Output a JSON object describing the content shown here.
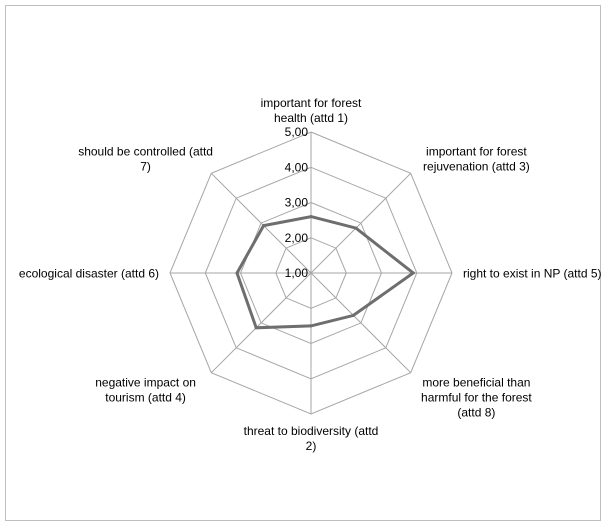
{
  "chart_data": {
    "type": "radar",
    "title": "",
    "scale": {
      "min": 1,
      "max": 5,
      "step": 1
    },
    "tick_labels": [
      "1,00",
      "2,00",
      "3,00",
      "4,00",
      "5,00"
    ],
    "categories": [
      {
        "label_lines": [
          "important for forest",
          "health (attd 1)"
        ]
      },
      {
        "label_lines": [
          "important for forest",
          "rejuvenation (attd 3)"
        ]
      },
      {
        "label_lines": [
          "right to exist in NP (attd 5)"
        ]
      },
      {
        "label_lines": [
          "more beneficial than",
          "harmful for the forest",
          "(attd 8)"
        ]
      },
      {
        "label_lines": [
          "threat to biodiversity (attd",
          "2)"
        ]
      },
      {
        "label_lines": [
          "negative impact on",
          "tourism (attd 4)"
        ]
      },
      {
        "label_lines": [
          "ecological disaster (attd 6)"
        ]
      },
      {
        "label_lines": [
          "should be controlled (attd",
          "7)"
        ]
      }
    ],
    "series": [
      {
        "values": [
          2.6,
          2.8,
          3.9,
          2.7,
          2.5,
          3.2,
          3.1,
          2.9
        ]
      }
    ],
    "colors": {
      "series": "#6e6e6e",
      "grid": "#a6a6a6"
    },
    "grid": true,
    "legend": "none"
  }
}
